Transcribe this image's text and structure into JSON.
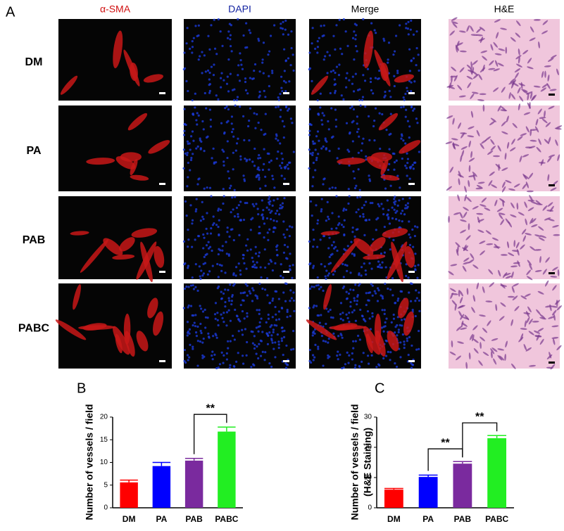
{
  "panel_a": {
    "label": "A",
    "columns": [
      "α-SMA",
      "DAPI",
      "Merge",
      "H&E"
    ],
    "rows": [
      "DM",
      "PA",
      "PAB",
      "PABC"
    ]
  },
  "chart_data": [
    {
      "type": "bar",
      "panel_label": "B",
      "y_label": "Number of vessels / field",
      "categories": [
        "DM",
        "PA",
        "PAB",
        "PABC"
      ],
      "values": [
        5.6,
        9.2,
        10.4,
        16.8
      ],
      "errors": [
        0.5,
        0.8,
        0.5,
        1.0
      ],
      "colors": [
        "#ff0000",
        "#0000ff",
        "#7a2a9e",
        "#22ee22"
      ],
      "ylim": [
        0,
        20
      ],
      "yticks": [
        0,
        5,
        10,
        15,
        20
      ],
      "annotations": [
        {
          "text": "**",
          "categories": [
            "PAB",
            "PABC"
          ]
        }
      ]
    },
    {
      "type": "bar",
      "panel_label": "C",
      "y_label": [
        "Number of vessels / field",
        "(H&E Staining)"
      ],
      "categories": [
        "DM",
        "PA",
        "PAB",
        "PABC"
      ],
      "values": [
        6.0,
        10.2,
        14.6,
        23.0
      ],
      "errors": [
        0.4,
        0.6,
        0.7,
        0.9
      ],
      "colors": [
        "#ff0000",
        "#0000ff",
        "#7a2a9e",
        "#22ee22"
      ],
      "ylim": [
        0,
        30
      ],
      "yticks": [
        0,
        10,
        20,
        30
      ],
      "annotations": [
        {
          "text": "**",
          "categories": [
            "PA",
            "PAB"
          ]
        },
        {
          "text": "**",
          "categories": [
            "PAB",
            "PABC"
          ]
        }
      ]
    }
  ]
}
